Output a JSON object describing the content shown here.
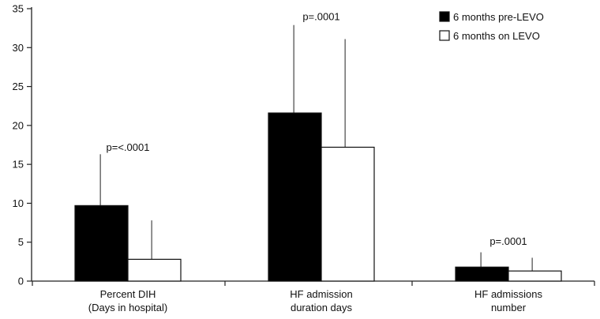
{
  "chart_data": {
    "type": "bar",
    "title": "",
    "xlabel": "",
    "ylabel": "",
    "ylim": [
      0,
      35
    ],
    "yticks": [
      0,
      5,
      10,
      15,
      20,
      25,
      30,
      35
    ],
    "grid": false,
    "legend_position": "top-right",
    "categories": [
      [
        "Percent DIH",
        "(Days in hospital)"
      ],
      [
        "HF admission",
        "duration days"
      ],
      [
        "HF admissions",
        "number"
      ]
    ],
    "series": [
      {
        "name": "6 months pre-LEVO",
        "color": "#000000",
        "values": [
          9.7,
          21.6,
          1.8
        ],
        "error_upper": [
          16.3,
          32.9,
          3.7
        ]
      },
      {
        "name": "6 months on LEVO",
        "color": "#ffffff",
        "values": [
          2.8,
          17.2,
          1.3
        ],
        "error_upper": [
          7.8,
          31.1,
          3.0
        ]
      }
    ],
    "annotations": [
      {
        "text": "p=<.0001",
        "category": 0,
        "y": 17.2
      },
      {
        "text": "p=.0001",
        "category": 1,
        "y": 34.0
      },
      {
        "text": "p=.0001",
        "category": 2,
        "y": 5.1
      }
    ]
  }
}
